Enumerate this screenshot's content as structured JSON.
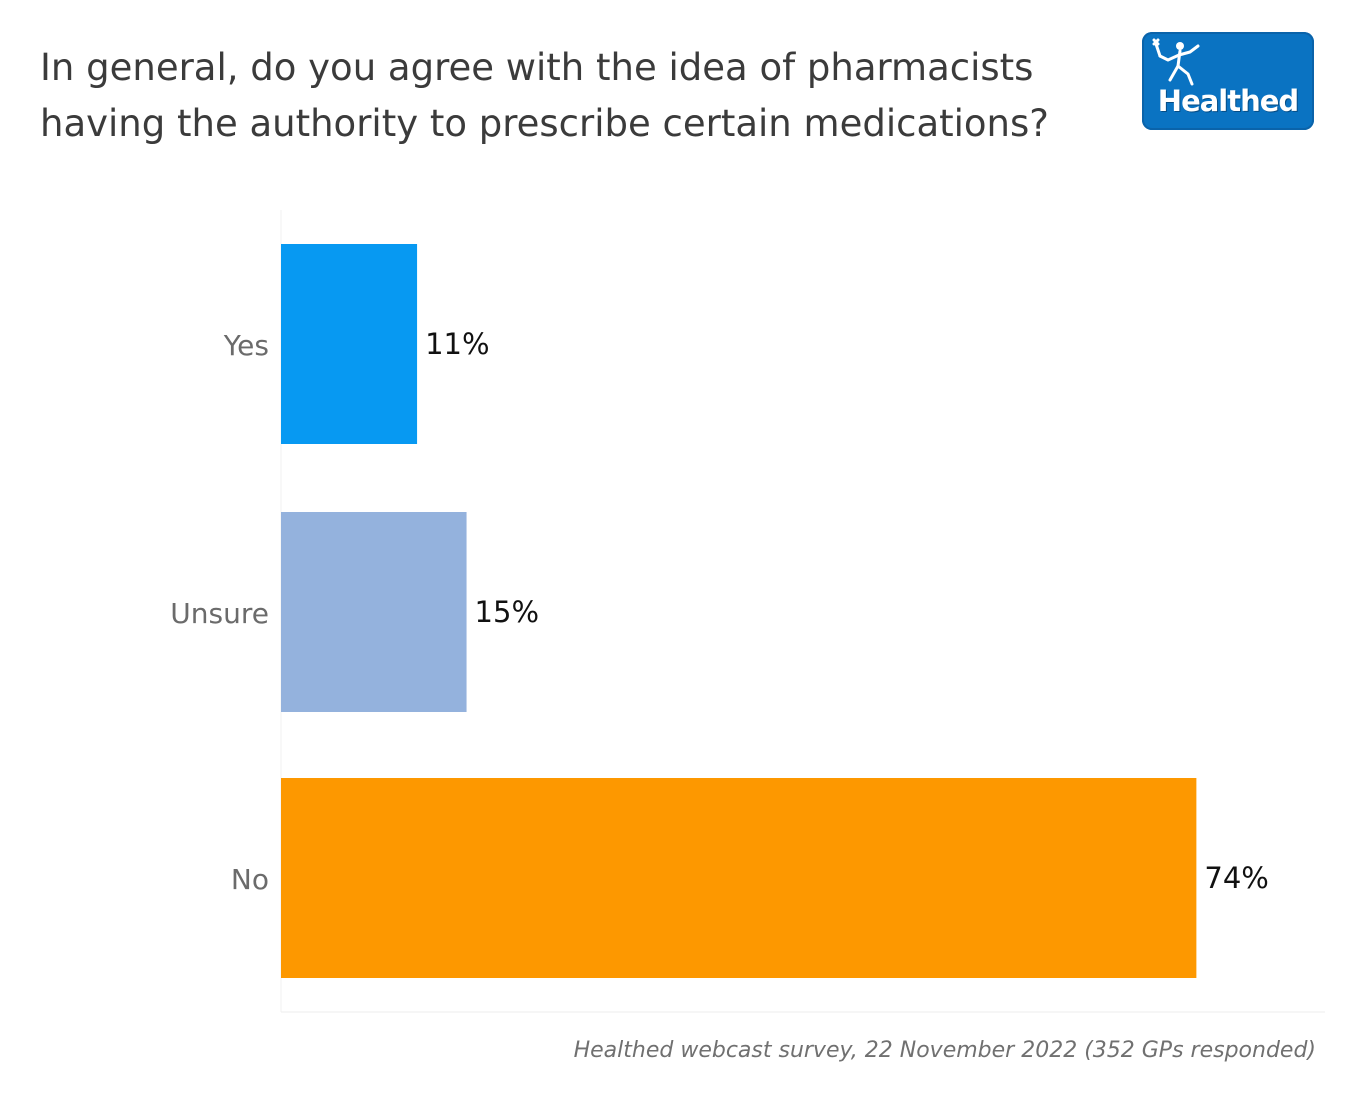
{
  "logo": {
    "text": "Healthed",
    "color": "#0a73c2",
    "icon": "running-figure-icon"
  },
  "footer": {
    "source": "Healthed webcast survey, 22 November 2022 (352 GPs responded)"
  },
  "chart_data": {
    "type": "bar",
    "orientation": "horizontal",
    "title": "In general, do you agree with the idea of pharmacists having the authority to prescribe certain medications?",
    "categories": [
      "Yes",
      "Unsure",
      "No"
    ],
    "values": [
      11,
      15,
      74
    ],
    "value_labels": [
      "11%",
      "15%",
      "74%"
    ],
    "colors": [
      "#0799f2",
      "#94b2dd",
      "#fd9800"
    ],
    "xlim": [
      0,
      80
    ],
    "unit": "%",
    "grid": false,
    "legend": "none"
  }
}
